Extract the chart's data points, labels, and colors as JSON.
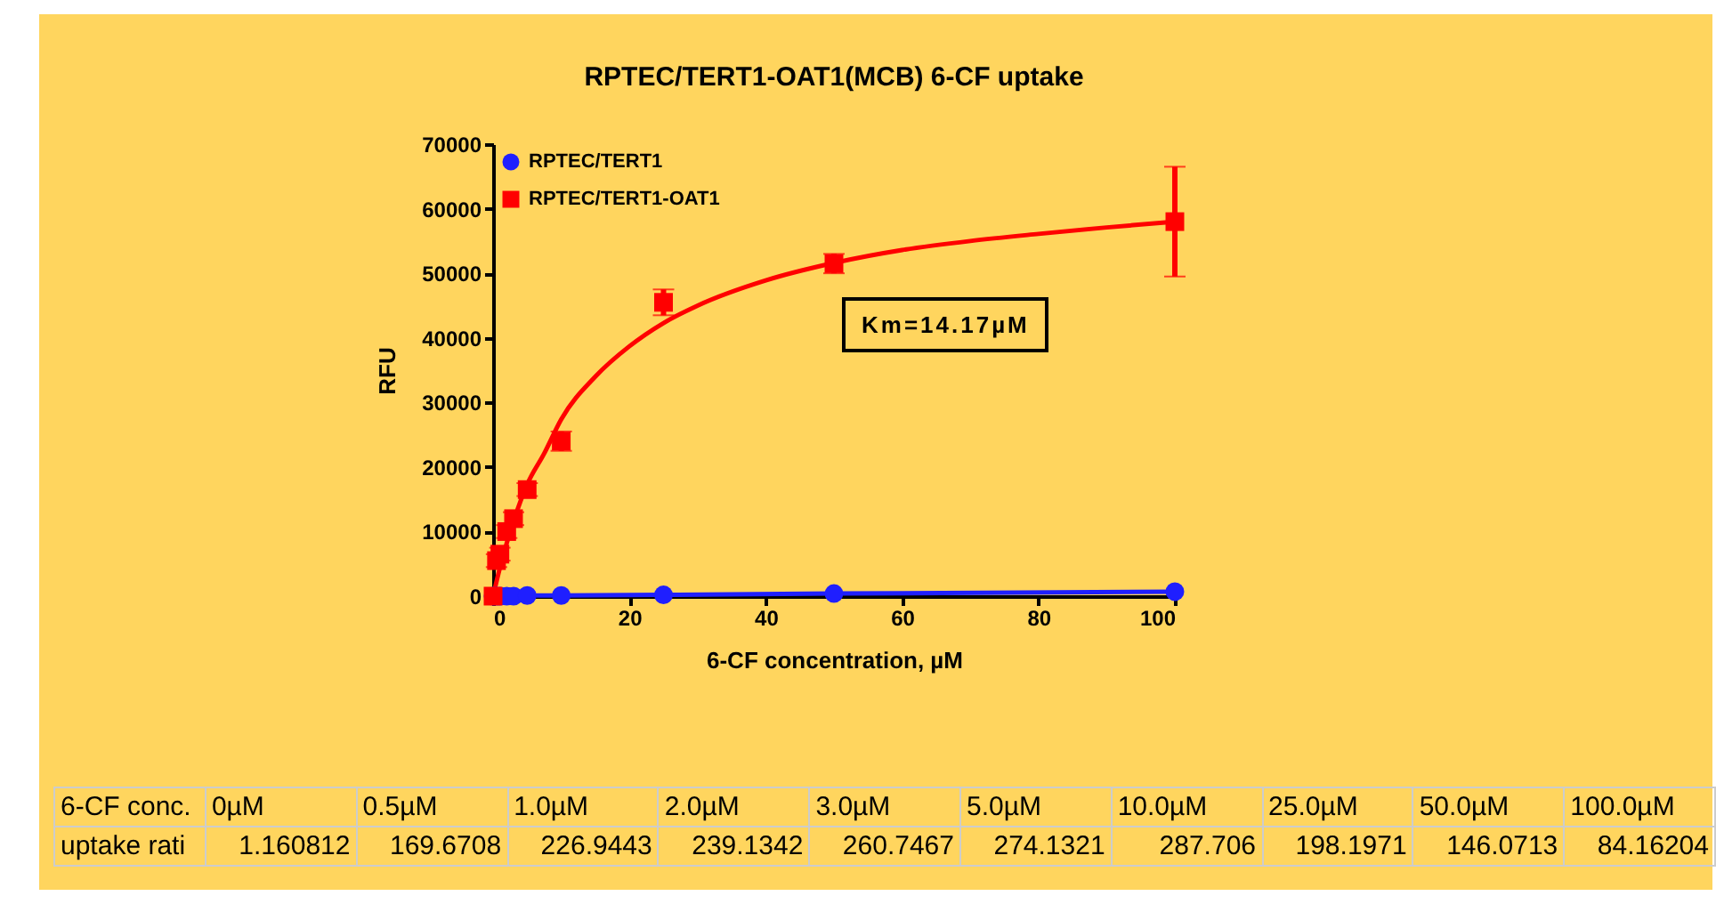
{
  "chart_data": {
    "type": "scatter",
    "title": "RPTEC/TERT1-OAT1(MCB) 6-CF uptake",
    "xlabel": "6-CF concentration, µM",
    "ylabel": "RFU",
    "x": [
      0,
      0.5,
      1,
      2,
      3,
      5,
      10,
      25,
      50,
      100
    ],
    "series": [
      {
        "name": "RPTEC/TERT1",
        "type": "line",
        "color": "#1f1fff",
        "marker": "circle",
        "values": [
          0,
          0,
          0,
          0,
          0,
          100,
          100,
          200,
          400,
          700
        ]
      },
      {
        "name": "RPTEC/TERT1-OAT1",
        "color": "#ff0000",
        "marker": "square",
        "values": [
          0,
          5500,
          6500,
          10000,
          12000,
          16500,
          24000,
          45500,
          51500,
          58000
        ],
        "errors": [
          null,
          1000,
          1000,
          1000,
          1000,
          1000,
          1500,
          2000,
          1500,
          8500
        ]
      },
      {
        "type": "line",
        "color": "#ff0000",
        "x": [
          0,
          1,
          2,
          3,
          5,
          7.5,
          10,
          15,
          20,
          25,
          30,
          40,
          50,
          60,
          70,
          80,
          90,
          100
        ],
        "values": [
          0,
          4400,
          8200,
          11600,
          17300,
          22100,
          27400,
          34000,
          38700,
          42300,
          45000,
          48900,
          51600,
          53600,
          55000,
          56100,
          57100,
          58000
        ]
      }
    ],
    "xlim": [
      0,
      100
    ],
    "xticks": [
      0,
      20,
      40,
      60,
      80,
      100
    ],
    "ylim": [
      0,
      70000
    ],
    "yticks": [
      0,
      10000,
      20000,
      30000,
      40000,
      50000,
      60000,
      70000
    ],
    "grid": false,
    "legend": "top left",
    "annotations": [
      "Km=14.17µM",
      "6-CF conc.",
      "0µM",
      "0.5µM",
      "1.0µM",
      "2.0µM",
      "3.0µM",
      "5.0µM",
      "10.0µM",
      "25.0µM",
      "50.0µM",
      "100.0µM",
      "uptake rati",
      "1.160812",
      "169.6708",
      "226.9443",
      "239.1342",
      "260.7467",
      "274.1321",
      "287.706",
      "198.1971",
      "146.0713",
      "84.16204"
    ]
  }
}
